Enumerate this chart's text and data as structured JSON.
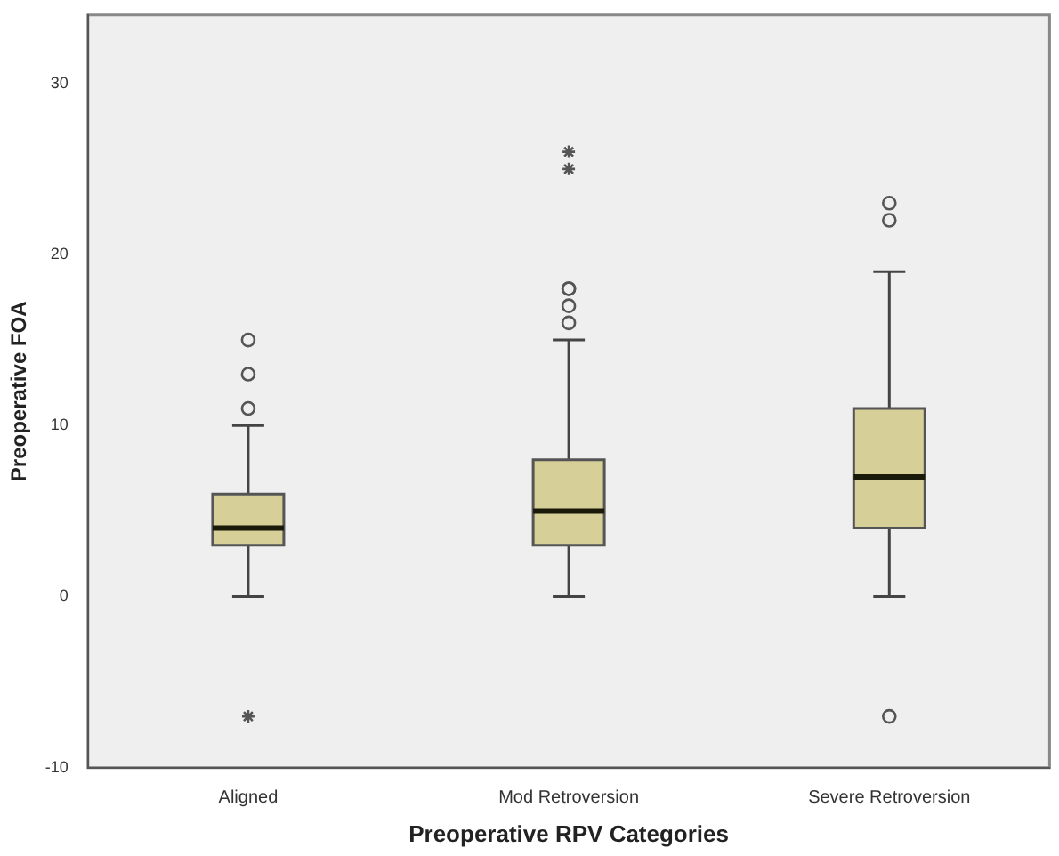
{
  "chart_data": {
    "type": "box",
    "xlabel": "Preoperative RPV Categories",
    "ylabel": "Preoperative FOA",
    "categories": [
      "Aligned",
      "Mod Retroversion",
      "Severe Retroversion"
    ],
    "color": "#d6cf98",
    "ylim": [
      -10,
      34
    ],
    "yticks": [
      -10,
      0,
      10,
      20,
      30
    ],
    "boxes": [
      {
        "low": 0,
        "q1": 3,
        "median": 4,
        "q3": 6,
        "high": 10,
        "outliers": [
          11,
          13,
          15,
          -7
        ]
      },
      {
        "low": 0,
        "q1": 3,
        "median": 5,
        "q3": 8,
        "high": 15,
        "outliers": [
          16,
          17,
          18,
          18,
          25,
          26
        ]
      },
      {
        "low": 0,
        "q1": 4,
        "median": 7,
        "q3": 11,
        "high": 19,
        "outliers": [
          22,
          23,
          -7
        ]
      }
    ]
  }
}
